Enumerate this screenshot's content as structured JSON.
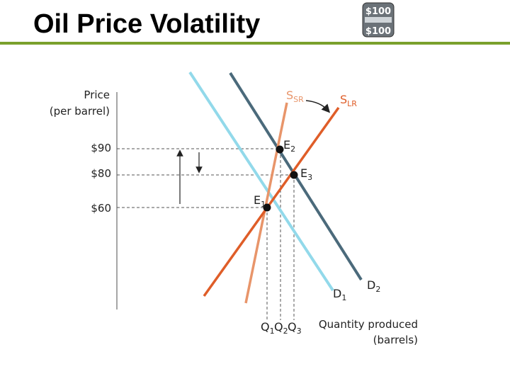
{
  "header": {
    "title": "Oil Price Volatility",
    "icon_labels": [
      "$100",
      "$100"
    ]
  },
  "diagram": {
    "y_axis_label": [
      "Price",
      "(per barrel)"
    ],
    "x_axis_label": [
      "Quantity produced",
      "(barrels)"
    ],
    "price_labels": [
      "$90",
      "$80",
      "$60"
    ],
    "curves": [
      {
        "base": "S",
        "sub": "SR"
      },
      {
        "base": "S",
        "sub": "LR"
      },
      {
        "base": "D",
        "sub": "1"
      },
      {
        "base": "D",
        "sub": "2"
      }
    ],
    "points": [
      {
        "base": "E",
        "sub": "1"
      },
      {
        "base": "E",
        "sub": "2"
      },
      {
        "base": "E",
        "sub": "3"
      }
    ],
    "quantities": [
      {
        "base": "Q",
        "sub": "1"
      },
      {
        "base": "Q",
        "sub": "2"
      },
      {
        "base": "Q",
        "sub": "3"
      }
    ]
  }
}
